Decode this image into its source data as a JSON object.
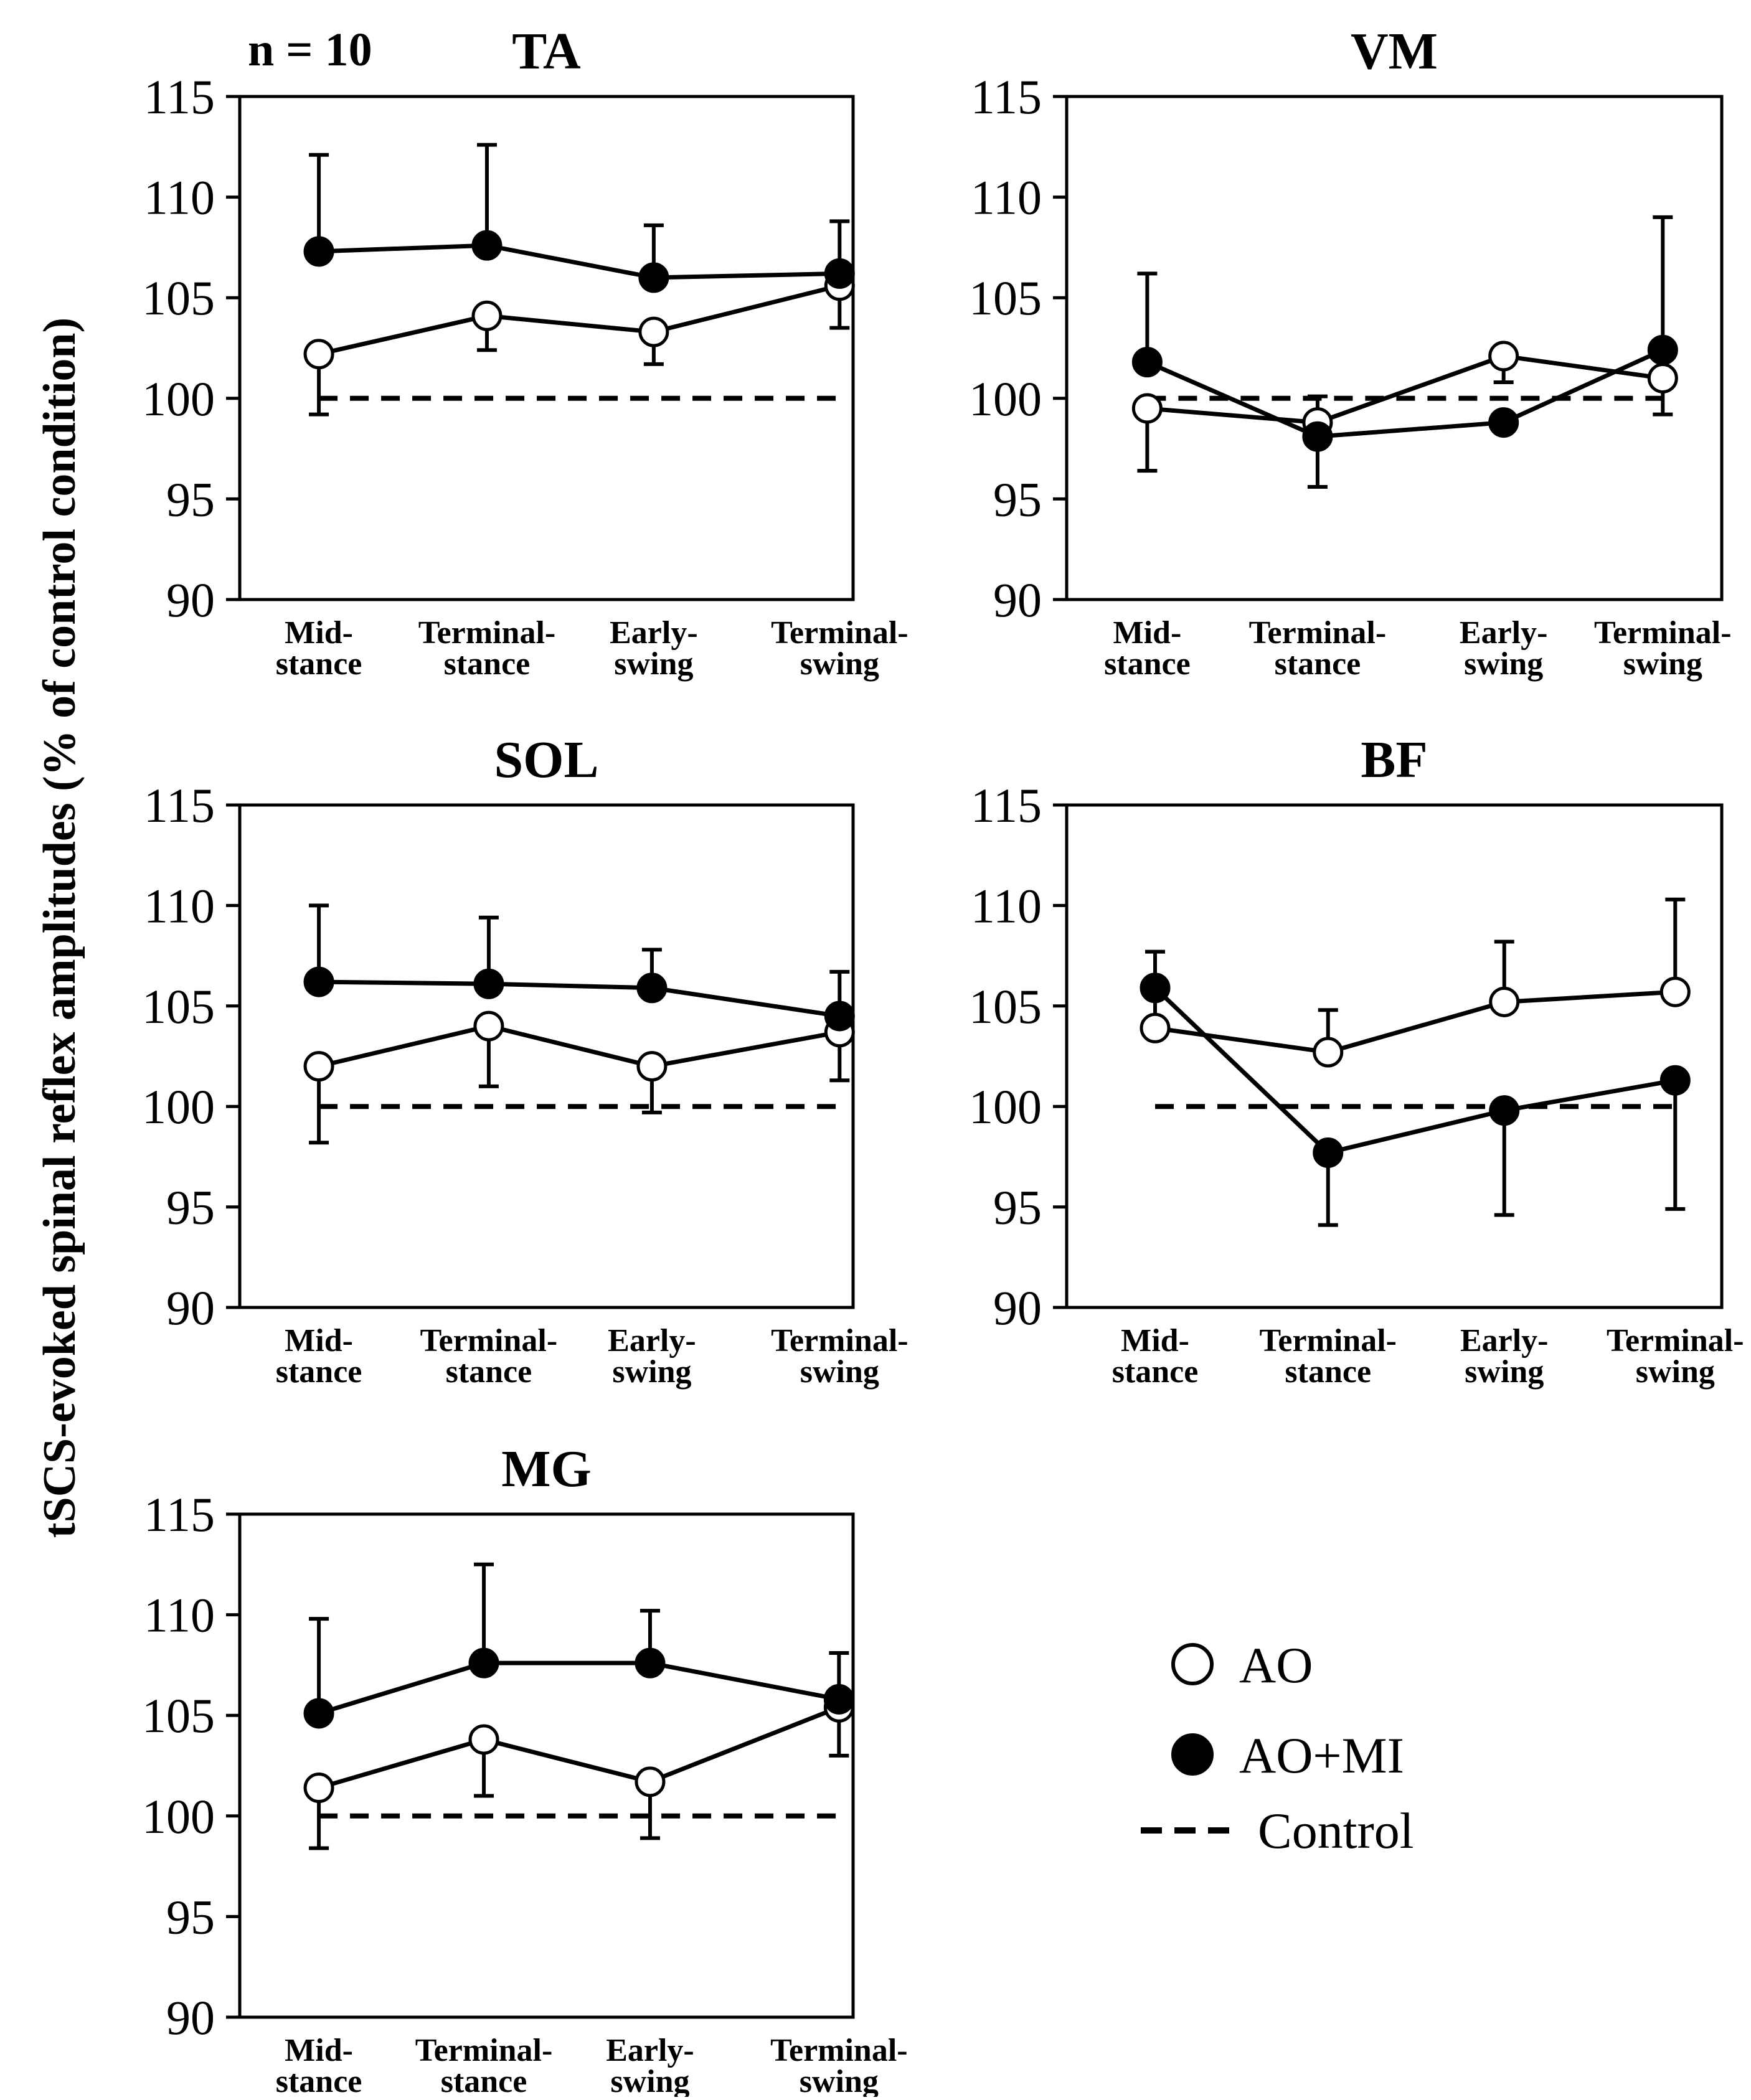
{
  "figure": {
    "n_label": "n = 10",
    "ylabel": "tSCS-evoked spinal reflex amplitudes (% of control condition)",
    "legend": [
      {
        "key": "ao",
        "label": "AO",
        "marker": "open-circle"
      },
      {
        "key": "aomi",
        "label": "AO+MI",
        "marker": "filled-circle"
      },
      {
        "key": "control",
        "label": "Control",
        "marker": "dashed-line"
      }
    ]
  },
  "chart_data": [
    {
      "type": "line",
      "title": "TA",
      "categories": [
        [
          "Mid-",
          "stance"
        ],
        [
          "Terminal-",
          "stance"
        ],
        [
          "Early-",
          "swing"
        ],
        [
          "Terminal-",
          "swing"
        ]
      ],
      "yticks": [
        90,
        95,
        100,
        105,
        110,
        115
      ],
      "ylim": [
        90,
        115
      ],
      "control": 100,
      "series": [
        {
          "name": "AO",
          "values": [
            102.2,
            104.1,
            103.3,
            105.6
          ],
          "errors": [
            3.0,
            1.7,
            1.6,
            2.1
          ],
          "error_dir": "down"
        },
        {
          "name": "AO+MI",
          "values": [
            107.3,
            107.6,
            106.0,
            106.2
          ],
          "errors": [
            4.8,
            5.0,
            2.6,
            2.6
          ],
          "error_dir": "up"
        }
      ]
    },
    {
      "type": "line",
      "title": "VM",
      "categories": [
        [
          "Mid-",
          "stance"
        ],
        [
          "Terminal-",
          "stance"
        ],
        [
          "Early-",
          "swing"
        ],
        [
          "Terminal-",
          "swing"
        ]
      ],
      "yticks": [
        90,
        95,
        100,
        105,
        110,
        115
      ],
      "ylim": [
        90,
        115
      ],
      "control": 100,
      "series": [
        {
          "name": "AO",
          "values": [
            99.5,
            98.8,
            102.1,
            101.0
          ],
          "errors": [
            3.1,
            3.2,
            1.3,
            1.8
          ],
          "error_dir": "down"
        },
        {
          "name": "AO+MI",
          "values": [
            101.8,
            98.1,
            98.8,
            102.4
          ],
          "errors": [
            4.4,
            2.0,
            0.0,
            6.6
          ],
          "error_dir": "up"
        }
      ]
    },
    {
      "type": "line",
      "title": "SOL",
      "categories": [
        [
          "Mid-",
          "stance"
        ],
        [
          "Terminal-",
          "stance"
        ],
        [
          "Early-",
          "swing"
        ],
        [
          "Terminal-",
          "swing"
        ]
      ],
      "yticks": [
        90,
        95,
        100,
        105,
        110,
        115
      ],
      "ylim": [
        90,
        115
      ],
      "control": 100,
      "series": [
        {
          "name": "AO",
          "values": [
            102.0,
            104.0,
            102.0,
            103.7
          ],
          "errors": [
            3.8,
            3.0,
            2.3,
            2.4
          ],
          "error_dir": "down"
        },
        {
          "name": "AO+MI",
          "values": [
            106.2,
            106.1,
            105.9,
            104.5
          ],
          "errors": [
            3.8,
            3.3,
            1.9,
            2.2
          ],
          "error_dir": "up"
        }
      ]
    },
    {
      "type": "line",
      "title": "BF",
      "categories": [
        [
          "Mid-",
          "stance"
        ],
        [
          "Terminal-",
          "stance"
        ],
        [
          "Early-",
          "swing"
        ],
        [
          "Terminal-",
          "swing"
        ]
      ],
      "yticks": [
        90,
        95,
        100,
        105,
        110,
        115
      ],
      "ylim": [
        90,
        115
      ],
      "control": 100,
      "series": [
        {
          "name": "AO",
          "values": [
            103.9,
            102.7,
            105.2,
            105.7
          ],
          "errors": [
            3.8,
            2.1,
            3.0,
            4.6
          ],
          "error_dir": "up"
        },
        {
          "name": "AO+MI",
          "values": [
            105.9,
            97.7,
            99.8,
            101.3
          ],
          "errors": [
            0.0,
            3.6,
            5.2,
            6.4
          ],
          "error_dir": "down"
        }
      ]
    },
    {
      "type": "line",
      "title": "MG",
      "categories": [
        [
          "Mid-",
          "stance"
        ],
        [
          "Terminal-",
          "stance"
        ],
        [
          "Early-",
          "swing"
        ],
        [
          "Terminal-",
          "swing"
        ]
      ],
      "yticks": [
        90,
        95,
        100,
        105,
        110,
        115
      ],
      "ylim": [
        90,
        115
      ],
      "control": 100,
      "series": [
        {
          "name": "AO",
          "values": [
            101.4,
            103.8,
            101.7,
            105.4
          ],
          "errors": [
            3.0,
            2.8,
            2.8,
            2.4
          ],
          "error_dir": "down"
        },
        {
          "name": "AO+MI",
          "values": [
            105.1,
            107.6,
            107.6,
            105.8
          ],
          "errors": [
            4.7,
            4.9,
            2.6,
            2.3
          ],
          "error_dir": "up"
        }
      ]
    }
  ]
}
